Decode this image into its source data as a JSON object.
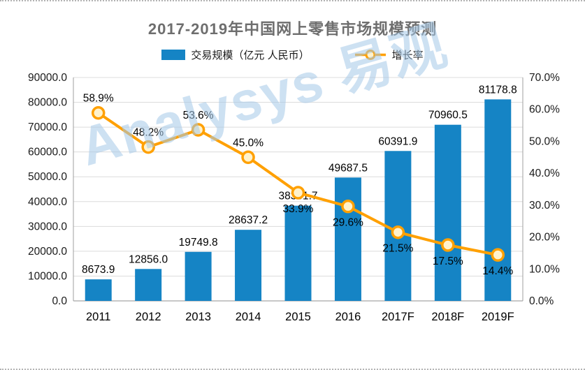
{
  "page": {
    "watermark": "Analysys 易观"
  },
  "chart_data": {
    "type": "combo",
    "title": "2017-2019年中国网上零售市场规模预测",
    "categories": [
      "2011",
      "2012",
      "2013",
      "2014",
      "2015",
      "2016",
      "2017F",
      "2018F",
      "2019F"
    ],
    "series": [
      {
        "name": "交易规模（亿元 人民币）",
        "chart_type": "bar",
        "color": "#1584C5",
        "values": [
          8673.9,
          12856.0,
          19749.8,
          28637.2,
          38351.7,
          49687.5,
          60391.9,
          70960.5,
          81178.8
        ]
      },
      {
        "name": "增长率",
        "chart_type": "line",
        "color": "#FFA000",
        "marker_fill": "#FFF2CC",
        "values": [
          58.9,
          48.2,
          53.6,
          45.0,
          33.9,
          29.6,
          21.5,
          17.5,
          14.4
        ],
        "label_positions": [
          "above",
          "above",
          "above",
          "above",
          "below",
          "below",
          "below",
          "below",
          "below"
        ]
      }
    ],
    "left_axis": {
      "min": 0,
      "max": 90000,
      "step": 10000,
      "suffix": ""
    },
    "right_axis": {
      "min": 0,
      "max": 70,
      "step": 10,
      "suffix": "%"
    },
    "grid": true,
    "legend_position": "top"
  }
}
